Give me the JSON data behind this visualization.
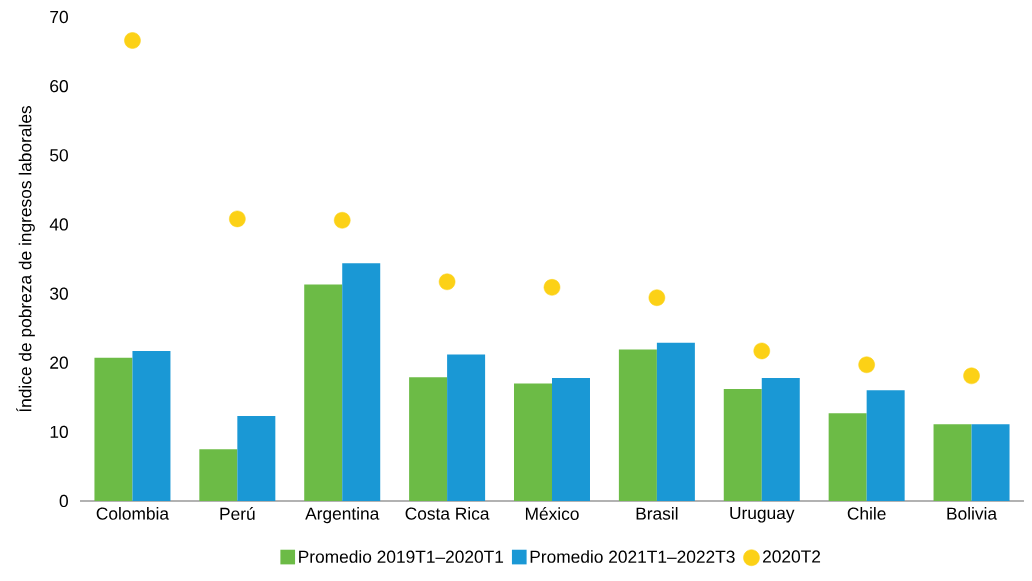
{
  "chart_data": {
    "type": "bar",
    "ylabel": "Índice de pobreza de ingresos laborales",
    "categories": [
      "Colombia",
      "Perú",
      "Argentina",
      "Costa Rica",
      "México",
      "Brasil",
      "Uruguay",
      "Chile",
      "Bolivia"
    ],
    "ylim": [
      0,
      70
    ],
    "yticks": [
      0,
      10,
      20,
      30,
      40,
      50,
      60,
      70
    ],
    "legend": "bottom",
    "grid": false,
    "series": [
      {
        "name": "Promedio 2019T1–2020T1",
        "color": "#6cbb46",
        "values": [
          20.7,
          7.5,
          31.3,
          17.9,
          17.0,
          21.9,
          16.2,
          12.7,
          11.1
        ]
      },
      {
        "name": "Promedio 2021T1–2022T3",
        "color": "#1a98d5",
        "values": [
          21.7,
          12.3,
          34.4,
          21.2,
          17.8,
          22.9,
          17.8,
          16.0,
          11.1
        ]
      },
      {
        "name": "2020T2",
        "type": "scatter",
        "color": "#fcd116",
        "values": [
          66.6,
          40.8,
          40.6,
          31.7,
          30.9,
          29.4,
          21.7,
          19.7,
          18.1
        ]
      }
    ]
  }
}
